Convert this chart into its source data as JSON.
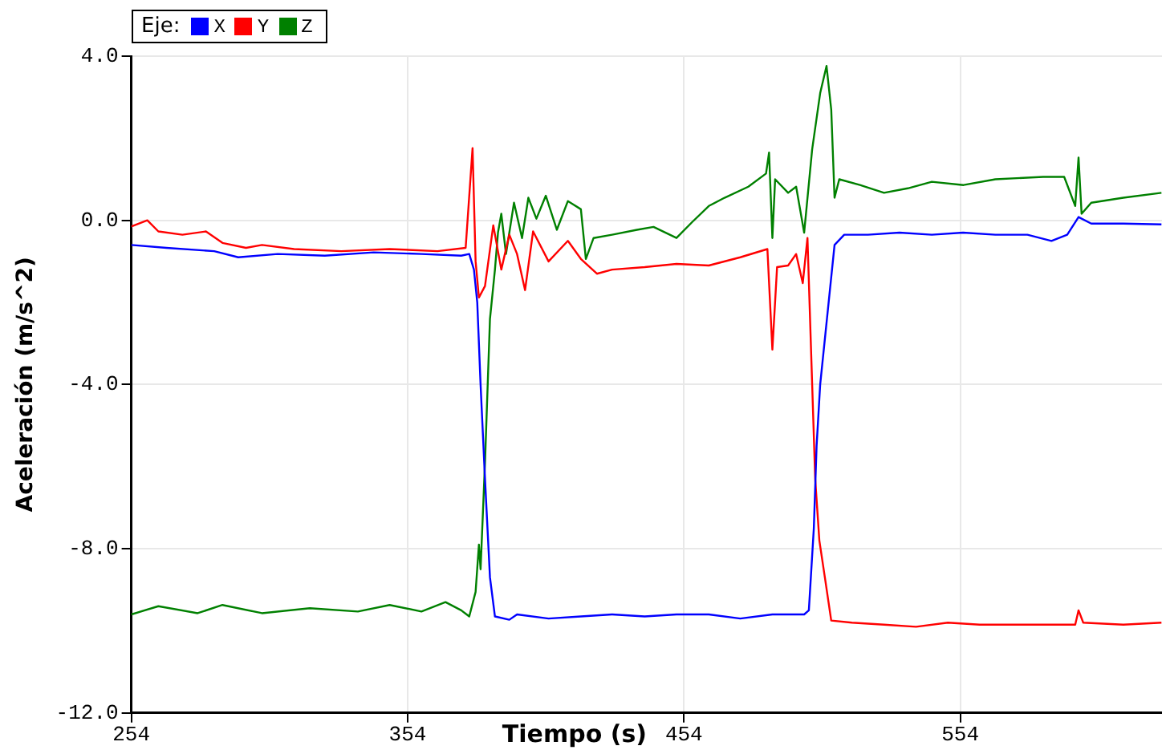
{
  "chart_data": {
    "type": "line",
    "xlabel": "Tiempo (s)",
    "ylabel": "Aceleración (m/s^2)",
    "legend_title": "Eje:",
    "legend": "top left",
    "grid": true,
    "marker": "none",
    "line_style": "solid",
    "xlim": [
      254,
      627
    ],
    "xticks": [
      254,
      354,
      454,
      554
    ],
    "ylim": [
      -12,
      4
    ],
    "yticks": [
      {
        "value": -12,
        "label": "-12.0"
      },
      {
        "value": -8,
        "label": "-8.0"
      },
      {
        "value": -4,
        "label": "-4.0"
      },
      {
        "value": 0,
        "label": "0.0"
      },
      {
        "value": 4,
        "label": "4.0"
      }
    ],
    "series": [
      {
        "name": "X",
        "color": "#0000ff",
        "x": [
          254,
          266.7,
          284,
          292.7,
          307,
          324,
          341.7,
          359,
          373.4,
          376.3,
          378,
          379.2,
          380.4,
          382,
          383.8,
          385.6,
          390.8,
          393.6,
          405,
          416.7,
          428,
          439.8,
          451.3,
          463,
          474.4,
          486,
          497.5,
          499.2,
          501,
          502,
          503.3,
          508.5,
          512,
          520.6,
          532,
          543.7,
          555,
          566.7,
          578.3,
          587,
          592.7,
          596.8,
          601.4,
          613,
          626.8
        ],
        "values": [
          -0.6,
          -0.67,
          -0.75,
          -0.9,
          -0.82,
          -0.86,
          -0.78,
          -0.82,
          -0.86,
          -0.82,
          -1.2,
          -2,
          -4,
          -6.3,
          -8.7,
          -9.65,
          -9.73,
          -9.6,
          -9.7,
          -9.65,
          -9.6,
          -9.65,
          -9.6,
          -9.6,
          -9.7,
          -9.6,
          -9.6,
          -9.5,
          -7.5,
          -5.5,
          -4,
          -0.6,
          -0.35,
          -0.35,
          -0.3,
          -0.35,
          -0.3,
          -0.35,
          -0.35,
          -0.5,
          -0.35,
          0.08,
          -0.08,
          -0.08,
          -0.1
        ]
      },
      {
        "name": "Y",
        "color": "#ff0000",
        "x": [
          254,
          259.8,
          263.8,
          272.5,
          281,
          287,
          295.5,
          301.3,
          312.9,
          330,
          347.5,
          364.8,
          375,
          377.5,
          378.6,
          379.8,
          382,
          385,
          387.9,
          390.8,
          393.6,
          396.5,
          399.4,
          405,
          412,
          416.7,
          422.5,
          428,
          439.8,
          451.3,
          463,
          474.4,
          484.2,
          486,
          487.7,
          491.7,
          494.6,
          497,
          498.7,
          500.4,
          501.5,
          503,
          505,
          507.3,
          514.8,
          526.4,
          538,
          549.5,
          561,
          595.6,
          596.8,
          598.5,
          613,
          626.8
        ],
        "values": [
          -0.15,
          0,
          -0.27,
          -0.35,
          -0.27,
          -0.55,
          -0.67,
          -0.6,
          -0.7,
          -0.75,
          -0.7,
          -0.75,
          -0.67,
          1.76,
          -1,
          -1.88,
          -1.6,
          -0.12,
          -1.2,
          -0.35,
          -0.82,
          -1.7,
          -0.27,
          -1,
          -0.5,
          -0.94,
          -1.3,
          -1.2,
          -1.14,
          -1.06,
          -1.1,
          -0.9,
          -0.7,
          -3.15,
          -1.14,
          -1.1,
          -0.82,
          -1.53,
          -0.43,
          -4,
          -6.3,
          -7.8,
          -8.7,
          -9.75,
          -9.8,
          -9.85,
          -9.9,
          -9.8,
          -9.85,
          -9.85,
          -9.5,
          -9.8,
          -9.85,
          -9.8
        ]
      },
      {
        "name": "Z",
        "color": "#008000",
        "x": [
          254,
          263.8,
          278,
          287,
          301.3,
          318.6,
          336,
          347.5,
          359,
          367.7,
          373.4,
          376.3,
          378.6,
          379.8,
          380.4,
          382,
          383.8,
          385.6,
          386.7,
          387.9,
          389.6,
          392.5,
          395.4,
          397.7,
          400.6,
          404,
          408,
          412,
          416.7,
          418.5,
          421.3,
          428,
          437,
          443,
          451.3,
          457,
          463,
          468.7,
          477.3,
          483.7,
          484.8,
          486,
          487,
          491.7,
          494.6,
          497.5,
          500.4,
          503.3,
          505.6,
          507.3,
          508.5,
          510.2,
          517.7,
          526.4,
          535,
          543.7,
          555.2,
          566.7,
          584,
          591.6,
          595.6,
          596.8,
          597.9,
          601.4,
          613,
          626.8
        ],
        "values": [
          -9.6,
          -9.4,
          -9.57,
          -9.37,
          -9.57,
          -9.45,
          -9.53,
          -9.37,
          -9.53,
          -9.3,
          -9.5,
          -9.65,
          -9.05,
          -7.9,
          -8.5,
          -5.9,
          -2.4,
          -1.2,
          -0.3,
          0.16,
          -0.82,
          0.43,
          -0.43,
          0.55,
          0.04,
          0.6,
          -0.23,
          0.47,
          0.27,
          -0.94,
          -0.43,
          -0.35,
          -0.23,
          -0.16,
          -0.43,
          -0.04,
          0.35,
          0.55,
          0.82,
          1.14,
          1.65,
          -0.43,
          1,
          0.67,
          0.82,
          -0.3,
          1.73,
          3.1,
          3.76,
          2.7,
          0.55,
          1,
          0.86,
          0.67,
          0.78,
          0.94,
          0.86,
          1,
          1.06,
          1.06,
          0.35,
          1.53,
          0.16,
          0.43,
          0.55,
          0.67
        ]
      }
    ]
  }
}
